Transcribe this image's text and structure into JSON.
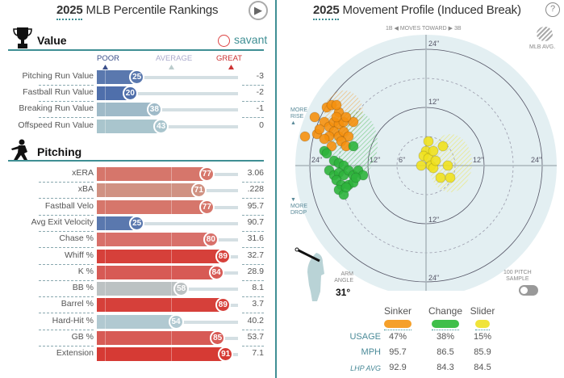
{
  "left": {
    "title_year": "2025",
    "title_text": "MLB Percentile Rankings",
    "play_icon": "play-circle-icon",
    "savant_label": "savant",
    "value_section": "Value",
    "pitching_section": "Pitching",
    "scale": {
      "poor": "POOR",
      "average": "AVERAGE",
      "great": "GREAT"
    },
    "value_rows": [
      {
        "label": "Pitching Run Value",
        "percentile": 25,
        "value": "-3",
        "color": "#5a78ae"
      },
      {
        "label": "Fastball Run Value",
        "percentile": 20,
        "value": "-2",
        "color": "#4f6fab"
      },
      {
        "label": "Breaking Run Value",
        "percentile": 38,
        "value": "-1",
        "color": "#9fbac8"
      },
      {
        "label": "Offspeed Run Value",
        "percentile": 43,
        "value": "0",
        "color": "#a9c5cd"
      }
    ],
    "pitching_rows": [
      {
        "label": "xERA",
        "percentile": 77,
        "value": "3.06",
        "color": "#d6766b"
      },
      {
        "label": "xBA",
        "percentile": 71,
        "value": ".228",
        "color": "#d09283"
      },
      {
        "label": "Fastball Velo",
        "percentile": 77,
        "value": "95.7",
        "color": "#d6766b"
      },
      {
        "label": "Avg Exit Velocity",
        "percentile": 25,
        "value": "90.7",
        "color": "#5a78ae"
      },
      {
        "label": "Chase %",
        "percentile": 80,
        "value": "31.6",
        "color": "#d8706a"
      },
      {
        "label": "Whiff %",
        "percentile": 89,
        "value": "32.7",
        "color": "#d6403a"
      },
      {
        "label": "K %",
        "percentile": 84,
        "value": "28.9",
        "color": "#d75a55"
      },
      {
        "label": "BB %",
        "percentile": 58,
        "value": "8.1",
        "color": "#bcc2c3"
      },
      {
        "label": "Barrel %",
        "percentile": 89,
        "value": "3.7",
        "color": "#d6403a"
      },
      {
        "label": "Hard-Hit %",
        "percentile": 54,
        "value": "40.2",
        "color": "#b1c9d1"
      },
      {
        "label": "GB %",
        "percentile": 85,
        "value": "53.7",
        "color": "#d75a55"
      },
      {
        "label": "Extension",
        "percentile": 91,
        "value": "7.1",
        "color": "#d63a34"
      }
    ]
  },
  "right": {
    "title_year": "2025",
    "title_text": "Movement Profile (Induced Break)",
    "help_icon": "?",
    "direction": {
      "left": "1B",
      "middle": "MOVES TOWARD",
      "right": "3B"
    },
    "mlb_avg": "MLB AVG.",
    "more_rise": [
      "MORE",
      "RISE"
    ],
    "more_drop": [
      "MORE",
      "DROP"
    ],
    "arm_angle_label": [
      "ARM",
      "ANGLE"
    ],
    "arm_angle_value": "31°",
    "sample_toggle": [
      "100 PITCH",
      "SAMPLE"
    ],
    "sample_toggle_on": false,
    "table": {
      "pitches": [
        "Sinker",
        "Change",
        "Slider"
      ],
      "colors": [
        "#f5a02a",
        "#3fbf4a",
        "#f0e43a"
      ],
      "rows": [
        {
          "label": "USAGE",
          "values": [
            "47%",
            "38%",
            "15%"
          ]
        },
        {
          "label": "MPH",
          "values": [
            "95.7",
            "86.5",
            "85.9"
          ]
        },
        {
          "label": "LHP AVG",
          "values": [
            "92.9",
            "84.3",
            "84.5"
          ]
        }
      ]
    }
  },
  "chart_data": {
    "type": "scatter",
    "title": "2025 Movement Profile (Induced Break)",
    "xlabel": "",
    "ylabel": "",
    "ring_labels": [
      "6\"",
      "12\"",
      "24\""
    ],
    "range_inches": 27,
    "series": [
      {
        "name": "Sinker",
        "color": "#f5900e",
        "mlb_avg": {
          "x": -17,
          "y": 11,
          "rx": 4,
          "ry": 4.5
        },
        "points": [
          [
            -25,
            6
          ],
          [
            -22.5,
            6.5
          ],
          [
            -23,
            10
          ],
          [
            -20.5,
            12
          ],
          [
            -19.5,
            12.5
          ],
          [
            -18,
            11
          ],
          [
            -18.5,
            12.5
          ],
          [
            -21,
            9
          ],
          [
            -20,
            8
          ],
          [
            -19,
            9
          ],
          [
            -18,
            8.5
          ],
          [
            -17,
            9
          ],
          [
            -19,
            7
          ],
          [
            -20,
            6
          ],
          [
            -21,
            5.5
          ],
          [
            -18,
            6
          ],
          [
            -17,
            7
          ],
          [
            -16,
            6
          ],
          [
            -17.5,
            5
          ],
          [
            -19.5,
            4
          ],
          [
            -16.5,
            4
          ],
          [
            -15,
            9
          ],
          [
            -22,
            7.5
          ],
          [
            -18.5,
            10
          ],
          [
            -16.5,
            10
          ]
        ]
      },
      {
        "name": "Change",
        "color": "#2db43c",
        "mlb_avg": {
          "x": -15,
          "y": 4.5,
          "rx": 5,
          "ry": 7
        },
        "points": [
          [
            -21,
            3
          ],
          [
            -20.5,
            2.5
          ],
          [
            -15,
            4
          ],
          [
            -19,
            1
          ],
          [
            -18,
            0.5
          ],
          [
            -17,
            0
          ],
          [
            -20,
            -1
          ],
          [
            -19,
            -2
          ],
          [
            -18,
            -1.5
          ],
          [
            -17,
            -2
          ],
          [
            -16,
            -1
          ],
          [
            -15,
            -2
          ],
          [
            -14,
            -1
          ],
          [
            -13,
            -2
          ],
          [
            -18.5,
            -3
          ],
          [
            -17.5,
            -4
          ],
          [
            -16,
            -4
          ],
          [
            -15,
            -3.5
          ],
          [
            -18,
            -5
          ],
          [
            -17,
            -6
          ],
          [
            -16.5,
            -4.5
          ],
          [
            -14.5,
            -2.5
          ]
        ]
      },
      {
        "name": "Slider",
        "color": "#f0e11e",
        "mlb_avg": {
          "x": 5,
          "y": 0.5,
          "rx": 4.5,
          "ry": 6
        },
        "points": [
          [
            0.5,
            5
          ],
          [
            0,
            3
          ],
          [
            -0.5,
            2
          ],
          [
            0.5,
            1.5
          ],
          [
            1.5,
            3
          ],
          [
            3.5,
            4
          ],
          [
            1,
            0
          ],
          [
            1.5,
            -0.5
          ],
          [
            -1,
            0
          ],
          [
            4.5,
            0
          ],
          [
            3,
            -2.5
          ],
          [
            5,
            -2.5
          ],
          [
            2,
            1
          ]
        ]
      }
    ]
  }
}
